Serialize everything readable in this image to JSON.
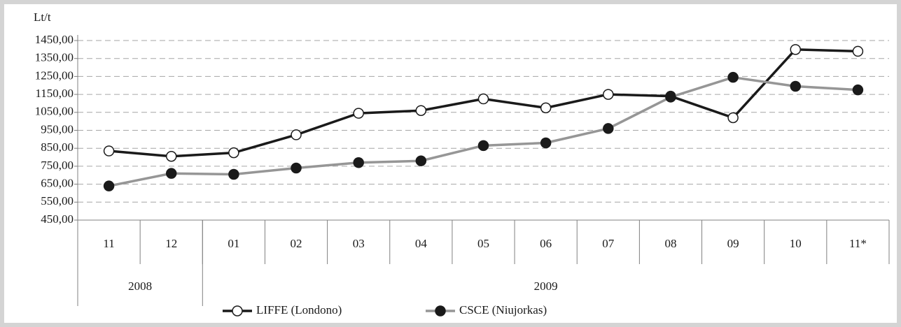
{
  "chart_data": {
    "type": "line",
    "ylabel": "Lt/t",
    "categories": [
      "11",
      "12",
      "01",
      "02",
      "03",
      "04",
      "05",
      "06",
      "07",
      "08",
      "09",
      "10",
      "11*"
    ],
    "x_groups": [
      {
        "label": "2008",
        "span": 2
      },
      {
        "label": "2009",
        "span": 11
      }
    ],
    "series": [
      {
        "name": "LIFFE (Londono)",
        "color": "#1a1a1a",
        "marker_fill": "#ffffff",
        "values": [
          835,
          805,
          825,
          925,
          1045,
          1060,
          1125,
          1075,
          1150,
          1140,
          1020,
          1400,
          1390
        ]
      },
      {
        "name": "CSCE (Niujorkas)",
        "color": "#969696",
        "marker_fill": "#1a1a1a",
        "values": [
          640,
          710,
          705,
          740,
          770,
          780,
          865,
          880,
          960,
          1135,
          1245,
          1195,
          1175
        ]
      }
    ],
    "ylim": [
      450,
      1450
    ],
    "yticks": [
      {
        "value": 450,
        "label": "450,00"
      },
      {
        "value": 550,
        "label": "550,00"
      },
      {
        "value": 650,
        "label": "650,00"
      },
      {
        "value": 750,
        "label": "750,00"
      },
      {
        "value": 850,
        "label": "850,00"
      },
      {
        "value": 950,
        "label": "950,00"
      },
      {
        "value": 1050,
        "label": "1050,00"
      },
      {
        "value": 1150,
        "label": "1150,00"
      },
      {
        "value": 1250,
        "label": "1250,00"
      },
      {
        "value": 1350,
        "label": "1350,00"
      },
      {
        "value": 1450,
        "label": "1450,00"
      }
    ],
    "grid": true,
    "legend": "bottom"
  }
}
